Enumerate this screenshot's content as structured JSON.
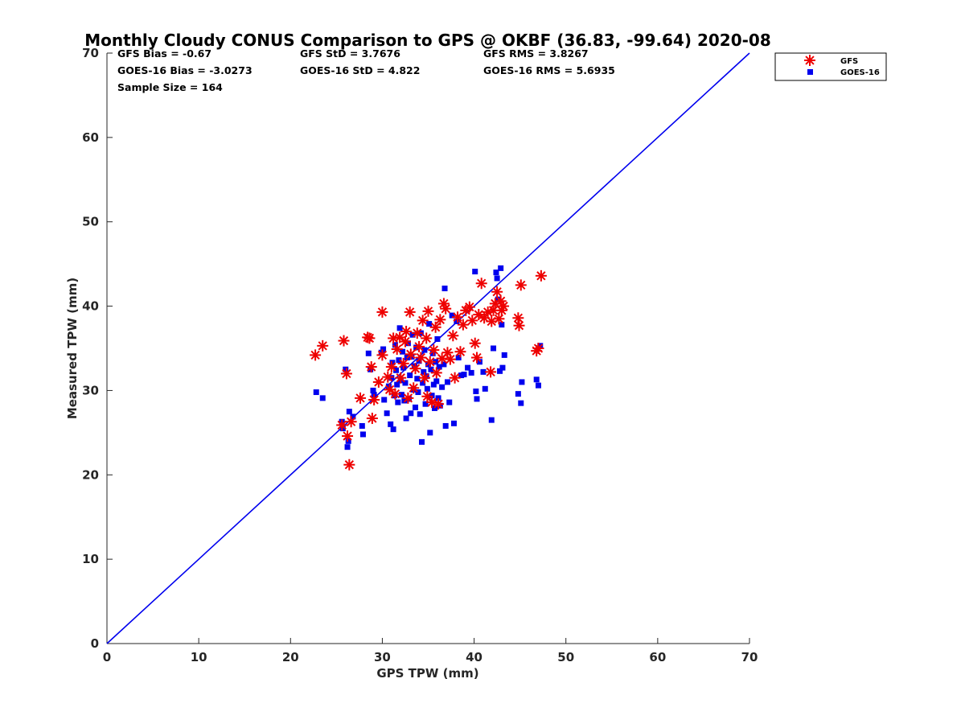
{
  "chart_data": {
    "type": "scatter",
    "title": "Monthly Cloudy CONUS Comparison to GPS @ OKBF (36.83, -99.64) 2020-08",
    "xlabel": "GPS TPW (mm)",
    "ylabel": "Measured TPW (mm)",
    "xlim": [
      0,
      70
    ],
    "ylim": [
      0,
      70
    ],
    "xticks": [
      "0",
      "10",
      "20",
      "30",
      "40",
      "50",
      "60",
      "70"
    ],
    "yticks": [
      "0",
      "10",
      "20",
      "30",
      "40",
      "50",
      "60",
      "70"
    ],
    "grid": false,
    "legend_position": "top-right outside",
    "stats": [
      [
        "GFS Bias = -0.67",
        "GFS StD = 3.7676",
        "GFS RMS = 3.8267"
      ],
      [
        "GOES-16 Bias = -3.0273",
        "GOES-16 StD = 4.822",
        "GOES-16 RMS = 5.6935"
      ],
      [
        "Sample Size = 164"
      ]
    ],
    "reference_line": {
      "x": [
        0,
        70
      ],
      "y": [
        0,
        70
      ],
      "color": "#0000ee"
    },
    "series": [
      {
        "name": "GFS",
        "marker": "asterisk",
        "color": "#ee0000",
        "points": [
          [
            22.7,
            34.2
          ],
          [
            23.5,
            35.3
          ],
          [
            25.8,
            35.9
          ],
          [
            25.6,
            25.9
          ],
          [
            26.2,
            24.6
          ],
          [
            26.1,
            32.0
          ],
          [
            26.4,
            21.2
          ],
          [
            26.6,
            26.3
          ],
          [
            27.6,
            29.1
          ],
          [
            28.4,
            36.3
          ],
          [
            28.8,
            32.8
          ],
          [
            28.6,
            36.2
          ],
          [
            28.9,
            26.7
          ],
          [
            29.1,
            28.9
          ],
          [
            29.6,
            31.0
          ],
          [
            30.0,
            39.3
          ],
          [
            30.0,
            34.2
          ],
          [
            30.6,
            31.6
          ],
          [
            30.8,
            30.1
          ],
          [
            31.0,
            32.8
          ],
          [
            31.2,
            36.2
          ],
          [
            31.4,
            29.6
          ],
          [
            31.6,
            34.9
          ],
          [
            31.9,
            36.3
          ],
          [
            32.0,
            31.5
          ],
          [
            32.3,
            33.2
          ],
          [
            32.5,
            35.8
          ],
          [
            32.6,
            37.0
          ],
          [
            32.8,
            29.1
          ],
          [
            33.0,
            39.3
          ],
          [
            33.1,
            34.3
          ],
          [
            33.4,
            30.3
          ],
          [
            33.6,
            32.6
          ],
          [
            33.8,
            36.8
          ],
          [
            34.0,
            35.2
          ],
          [
            34.2,
            33.9
          ],
          [
            34.4,
            38.3
          ],
          [
            34.6,
            31.5
          ],
          [
            34.8,
            36.2
          ],
          [
            34.9,
            29.3
          ],
          [
            35.0,
            39.4
          ],
          [
            35.2,
            33.4
          ],
          [
            35.4,
            28.6
          ],
          [
            35.6,
            34.8
          ],
          [
            35.8,
            37.5
          ],
          [
            35.9,
            32.1
          ],
          [
            36.1,
            28.4
          ],
          [
            36.3,
            38.4
          ],
          [
            36.5,
            33.8
          ],
          [
            36.7,
            40.3
          ],
          [
            36.9,
            39.7
          ],
          [
            37.1,
            34.5
          ],
          [
            37.4,
            33.7
          ],
          [
            37.7,
            36.5
          ],
          [
            37.9,
            31.5
          ],
          [
            38.2,
            38.7
          ],
          [
            38.5,
            34.6
          ],
          [
            38.8,
            37.8
          ],
          [
            39.1,
            39.5
          ],
          [
            39.5,
            39.9
          ],
          [
            39.8,
            38.3
          ],
          [
            40.1,
            35.6
          ],
          [
            40.3,
            33.9
          ],
          [
            40.5,
            39.0
          ],
          [
            40.8,
            42.7
          ],
          [
            41.1,
            38.6
          ],
          [
            41.5,
            39.3
          ],
          [
            41.8,
            32.2
          ],
          [
            41.9,
            38.2
          ],
          [
            42.1,
            39.5
          ],
          [
            42.3,
            40.3
          ],
          [
            42.5,
            41.7
          ],
          [
            42.7,
            38.5
          ],
          [
            42.9,
            40.6
          ],
          [
            43.0,
            39.5
          ],
          [
            43.2,
            40.0
          ],
          [
            44.8,
            38.6
          ],
          [
            44.9,
            37.7
          ],
          [
            45.1,
            42.5
          ],
          [
            46.8,
            34.7
          ],
          [
            47.0,
            35.0
          ],
          [
            47.3,
            43.6
          ]
        ]
      },
      {
        "name": "GOES-16",
        "marker": "square",
        "color": "#0000ee",
        "points": [
          [
            22.8,
            29.8
          ],
          [
            23.5,
            29.1
          ],
          [
            25.6,
            26.3
          ],
          [
            25.7,
            25.5
          ],
          [
            26.0,
            32.5
          ],
          [
            26.2,
            23.3
          ],
          [
            26.3,
            24.0
          ],
          [
            26.4,
            27.5
          ],
          [
            26.8,
            26.9
          ],
          [
            27.8,
            25.8
          ],
          [
            27.9,
            24.8
          ],
          [
            28.5,
            34.4
          ],
          [
            28.7,
            32.5
          ],
          [
            29.0,
            30.0
          ],
          [
            29.1,
            29.5
          ],
          [
            29.9,
            34.5
          ],
          [
            30.1,
            34.9
          ],
          [
            30.2,
            28.9
          ],
          [
            30.5,
            27.3
          ],
          [
            30.7,
            30.5
          ],
          [
            30.9,
            26.0
          ],
          [
            31.0,
            31.5
          ],
          [
            31.1,
            33.3
          ],
          [
            31.2,
            25.4
          ],
          [
            31.3,
            29.4
          ],
          [
            31.4,
            35.4
          ],
          [
            31.5,
            32.4
          ],
          [
            31.6,
            30.7
          ],
          [
            31.7,
            28.6
          ],
          [
            31.8,
            33.6
          ],
          [
            31.9,
            37.4
          ],
          [
            32.0,
            31.2
          ],
          [
            32.1,
            29.5
          ],
          [
            32.2,
            34.6
          ],
          [
            32.3,
            32.7
          ],
          [
            32.4,
            28.8
          ],
          [
            32.5,
            30.9
          ],
          [
            32.6,
            26.7
          ],
          [
            32.7,
            33.9
          ],
          [
            32.8,
            35.6
          ],
          [
            32.9,
            29.0
          ],
          [
            33.0,
            31.8
          ],
          [
            33.1,
            27.3
          ],
          [
            33.2,
            34.0
          ],
          [
            33.3,
            36.6
          ],
          [
            33.4,
            30.1
          ],
          [
            33.5,
            32.9
          ],
          [
            33.6,
            28.0
          ],
          [
            33.7,
            35.1
          ],
          [
            33.8,
            31.4
          ],
          [
            33.9,
            29.8
          ],
          [
            34.0,
            33.5
          ],
          [
            34.1,
            27.2
          ],
          [
            34.2,
            36.8
          ],
          [
            34.3,
            23.9
          ],
          [
            34.4,
            30.9
          ],
          [
            34.5,
            32.2
          ],
          [
            34.6,
            34.8
          ],
          [
            34.7,
            28.4
          ],
          [
            34.8,
            31.7
          ],
          [
            34.9,
            30.2
          ],
          [
            35.0,
            33.1
          ],
          [
            35.1,
            37.9
          ],
          [
            35.2,
            25.0
          ],
          [
            35.3,
            32.5
          ],
          [
            35.4,
            29.4
          ],
          [
            35.5,
            34.4
          ],
          [
            35.6,
            30.7
          ],
          [
            35.7,
            27.9
          ],
          [
            35.8,
            33.4
          ],
          [
            35.9,
            31.1
          ],
          [
            36.0,
            36.1
          ],
          [
            36.1,
            29.1
          ],
          [
            36.2,
            32.8
          ],
          [
            36.3,
            28.2
          ],
          [
            36.5,
            30.4
          ],
          [
            36.7,
            33.1
          ],
          [
            36.8,
            42.1
          ],
          [
            36.9,
            25.8
          ],
          [
            37.1,
            31.0
          ],
          [
            37.3,
            28.6
          ],
          [
            37.6,
            38.9
          ],
          [
            37.8,
            26.1
          ],
          [
            38.1,
            38.2
          ],
          [
            38.3,
            33.9
          ],
          [
            38.6,
            31.8
          ],
          [
            38.9,
            31.9
          ],
          [
            39.3,
            32.7
          ],
          [
            39.7,
            32.1
          ],
          [
            40.1,
            44.1
          ],
          [
            40.2,
            29.9
          ],
          [
            40.3,
            29.0
          ],
          [
            40.6,
            33.4
          ],
          [
            41.0,
            32.2
          ],
          [
            41.2,
            30.2
          ],
          [
            41.9,
            26.5
          ],
          [
            42.1,
            35.0
          ],
          [
            42.4,
            44.0
          ],
          [
            42.5,
            43.3
          ],
          [
            42.6,
            40.8
          ],
          [
            42.8,
            32.3
          ],
          [
            42.9,
            44.5
          ],
          [
            43.0,
            37.8
          ],
          [
            43.1,
            32.7
          ],
          [
            43.3,
            34.2
          ],
          [
            44.8,
            29.6
          ],
          [
            45.1,
            28.5
          ],
          [
            45.2,
            31.0
          ],
          [
            46.8,
            31.3
          ],
          [
            47.0,
            30.6
          ],
          [
            47.2,
            35.3
          ]
        ]
      }
    ]
  }
}
